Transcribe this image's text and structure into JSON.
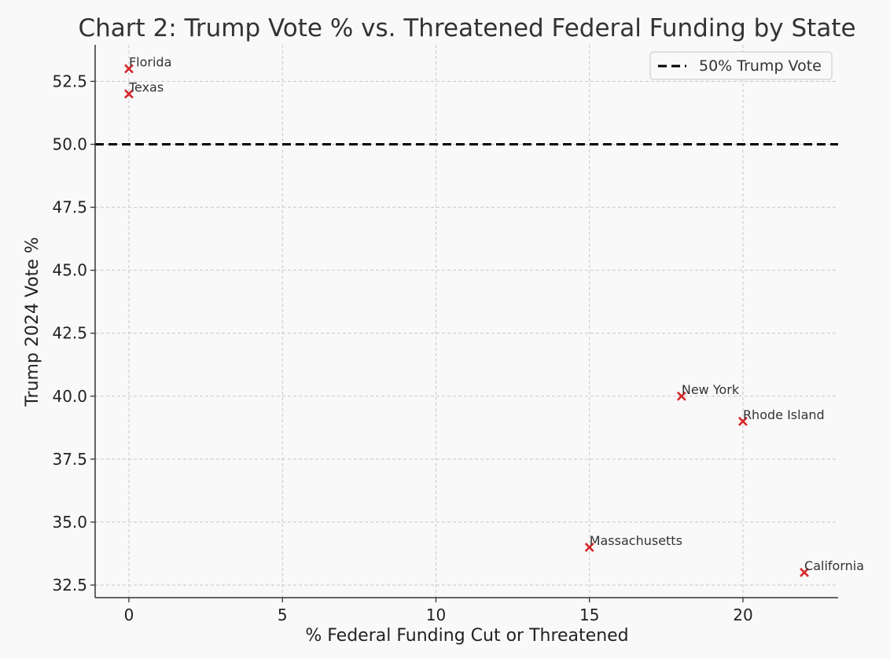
{
  "chart_data": {
    "type": "scatter",
    "title": "Chart 2: Trump Vote % vs. Threatened Federal Funding by State",
    "xlabel": "% Federal Funding Cut or Threatened",
    "ylabel": "Trump 2024 Vote %",
    "xlim": [
      -1.1,
      23.1
    ],
    "ylim": [
      32.0,
      53.95
    ],
    "xticks": [
      0,
      5,
      10,
      15,
      20
    ],
    "yticks": [
      32.5,
      35.0,
      37.5,
      40.0,
      42.5,
      45.0,
      47.5,
      50.0,
      52.5
    ],
    "grid": true,
    "legend": {
      "placement": "top-right",
      "entries": [
        "50% Trump Vote"
      ]
    },
    "marker_color": "#d62728",
    "reference_line": {
      "y": 50,
      "style": "dashed",
      "color": "#000000",
      "label": "50% Trump Vote"
    },
    "points": [
      {
        "label": "Florida",
        "x": 0,
        "y": 53
      },
      {
        "label": "Texas",
        "x": 0,
        "y": 52
      },
      {
        "label": "New York",
        "x": 18,
        "y": 40
      },
      {
        "label": "Rhode Island",
        "x": 20,
        "y": 39
      },
      {
        "label": "Massachusetts",
        "x": 15,
        "y": 34
      },
      {
        "label": "California",
        "x": 22,
        "y": 33
      }
    ]
  }
}
